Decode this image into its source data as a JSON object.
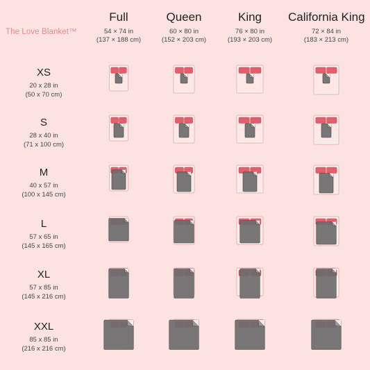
{
  "brand": "The Love Blanket™",
  "columns": [
    {
      "name": "Full",
      "dim_in": "54 × 74 in",
      "dim_cm": "(137 × 188 cm)"
    },
    {
      "name": "Queen",
      "dim_in": "60 × 80 in",
      "dim_cm": "(152 × 203 cm)"
    },
    {
      "name": "King",
      "dim_in": "76 × 80 in",
      "dim_cm": "(193 × 203 cm)"
    },
    {
      "name": "California King",
      "dim_in": "72 × 84 in",
      "dim_cm": "(183 × 213 cm)"
    }
  ],
  "rows": [
    {
      "size": "XS",
      "dim_in": "20 x 28 in",
      "dim_cm": "(50 x 70 cm)"
    },
    {
      "size": "S",
      "dim_in": "28 x 40 in",
      "dim_cm": "(71 x 100 cm)"
    },
    {
      "size": "M",
      "dim_in": "40 x 57 in",
      "dim_cm": "(100 x 145 cm)"
    },
    {
      "size": "L",
      "dim_in": "57 x 65 in",
      "dim_cm": "(145 x 165 cm)"
    },
    {
      "size": "XL",
      "dim_in": "57 x 85 in",
      "dim_cm": "(145 x 216 cm)"
    },
    {
      "size": "XXL",
      "dim_in": "85 x 85 in",
      "dim_cm": "(216 x 216 cm)"
    }
  ],
  "colors": {
    "background": "#fce3e1",
    "bed": "#fde7e7",
    "bed_outline": "#e9a3a8",
    "pillow": "#e2606c",
    "blanket": "#6d6d6d",
    "blanket_outline": "#444444",
    "brand": "#e08a8f"
  }
}
